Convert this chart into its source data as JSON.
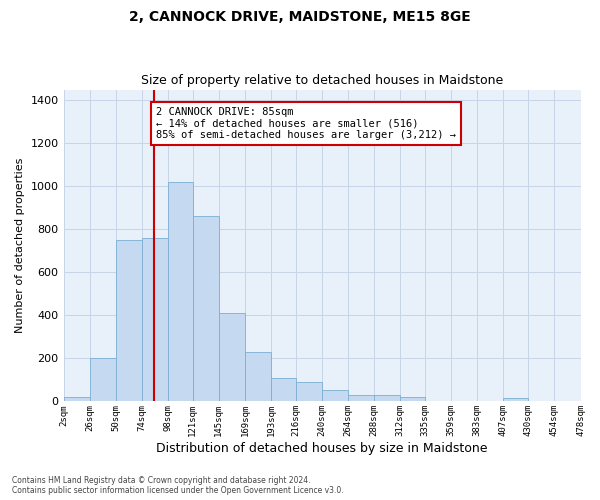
{
  "title": "2, CANNOCK DRIVE, MAIDSTONE, ME15 8GE",
  "subtitle": "Size of property relative to detached houses in Maidstone",
  "xlabel": "Distribution of detached houses by size in Maidstone",
  "ylabel": "Number of detached properties",
  "bar_color": "#c5d9f0",
  "bar_edge_color": "#7bafd4",
  "vline_color": "#cc0000",
  "vline_x": 85,
  "annotation_text": "2 CANNOCK DRIVE: 85sqm\n← 14% of detached houses are smaller (516)\n85% of semi-detached houses are larger (3,212) →",
  "annotation_box_color": "#cc0000",
  "bins": [
    2,
    26,
    50,
    74,
    98,
    121,
    145,
    169,
    193,
    216,
    240,
    264,
    288,
    312,
    335,
    359,
    383,
    407,
    430,
    454,
    478
  ],
  "bar_heights": [
    20,
    200,
    750,
    760,
    1020,
    860,
    410,
    230,
    110,
    90,
    55,
    30,
    30,
    20,
    0,
    0,
    0,
    15,
    0,
    0
  ],
  "ylim": [
    0,
    1450
  ],
  "yticks": [
    0,
    200,
    400,
    600,
    800,
    1000,
    1200,
    1400
  ],
  "footnote": "Contains HM Land Registry data © Crown copyright and database right 2024.\nContains public sector information licensed under the Open Government Licence v3.0.",
  "bg_color": "#e8f0fa",
  "grid_color": "#c8d4e8",
  "title_fontsize": 10,
  "subtitle_fontsize": 9,
  "annotation_fontsize": 7.5
}
